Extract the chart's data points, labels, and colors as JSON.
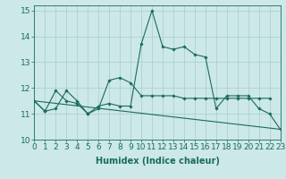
{
  "xlabel": "Humidex (Indice chaleur)",
  "background_color": "#cce8e8",
  "grid_color": "#aacccc",
  "line_color": "#1a6b5a",
  "x_values": [
    0,
    1,
    2,
    3,
    4,
    5,
    6,
    7,
    8,
    9,
    10,
    11,
    12,
    13,
    14,
    15,
    16,
    17,
    18,
    19,
    20,
    21,
    22,
    23
  ],
  "line1": [
    11.5,
    11.1,
    11.2,
    11.9,
    11.5,
    11.0,
    11.3,
    11.4,
    11.3,
    11.3,
    13.7,
    15.0,
    13.6,
    13.5,
    13.6,
    13.3,
    13.2,
    11.2,
    11.7,
    11.7,
    11.7,
    11.2,
    11.0,
    10.4
  ],
  "line2": [
    11.5,
    11.1,
    11.9,
    11.5,
    11.4,
    11.0,
    11.2,
    12.3,
    12.4,
    12.2,
    11.7,
    11.7,
    11.7,
    11.7,
    11.6,
    11.6,
    11.6,
    11.6,
    11.6,
    11.6,
    11.6,
    11.6,
    11.6,
    null
  ],
  "line3_x": [
    0,
    23
  ],
  "line3_y": [
    11.5,
    10.4
  ],
  "ylim": [
    10.0,
    15.2
  ],
  "xlim": [
    0,
    23
  ],
  "yticks": [
    10,
    11,
    12,
    13,
    14,
    15
  ],
  "xticks": [
    0,
    1,
    2,
    3,
    4,
    5,
    6,
    7,
    8,
    9,
    10,
    11,
    12,
    13,
    14,
    15,
    16,
    17,
    18,
    19,
    20,
    21,
    22,
    23
  ],
  "xtick_labels": [
    "0",
    "1",
    "2",
    "3",
    "4",
    "5",
    "6",
    "7",
    "8",
    "9",
    "10",
    "11",
    "12",
    "13",
    "14",
    "15",
    "16",
    "17",
    "18",
    "19",
    "20",
    "21",
    "22",
    "23"
  ],
  "label_fontsize": 7,
  "tick_fontsize": 6.5
}
